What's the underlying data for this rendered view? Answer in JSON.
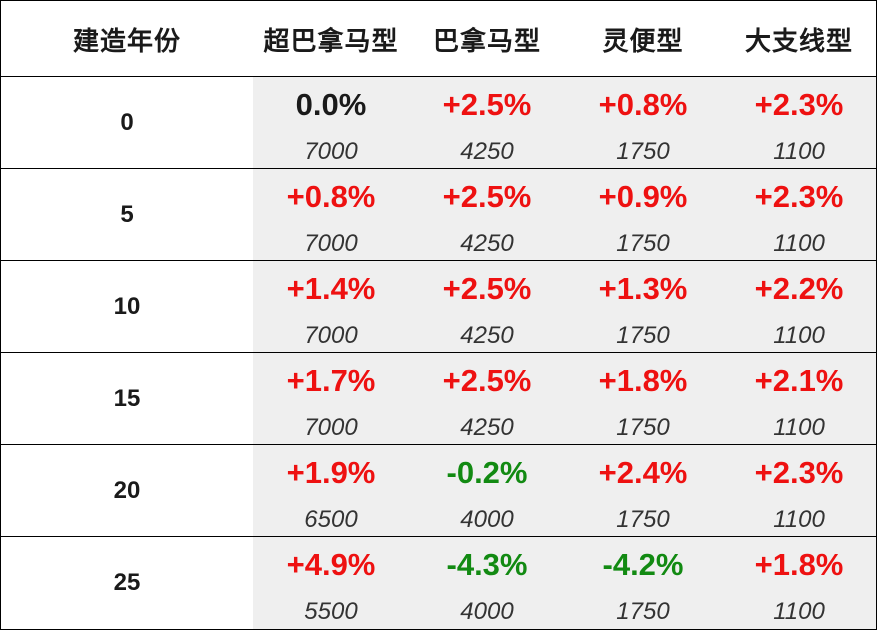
{
  "chart_data": {
    "type": "table",
    "columns": [
      "建造年份",
      "超巴拿马型",
      "巴拿马型",
      "灵便型",
      "大支线型"
    ],
    "rows": [
      {
        "year": "0",
        "cells": [
          {
            "pct": "0.0%",
            "sign": "zero",
            "value": "7000"
          },
          {
            "pct": "+2.5%",
            "sign": "pos",
            "value": "4250"
          },
          {
            "pct": "+0.8%",
            "sign": "pos",
            "value": "1750"
          },
          {
            "pct": "+2.3%",
            "sign": "pos",
            "value": "1100"
          }
        ]
      },
      {
        "year": "5",
        "cells": [
          {
            "pct": "+0.8%",
            "sign": "pos",
            "value": "7000"
          },
          {
            "pct": "+2.5%",
            "sign": "pos",
            "value": "4250"
          },
          {
            "pct": "+0.9%",
            "sign": "pos",
            "value": "1750"
          },
          {
            "pct": "+2.3%",
            "sign": "pos",
            "value": "1100"
          }
        ]
      },
      {
        "year": "10",
        "cells": [
          {
            "pct": "+1.4%",
            "sign": "pos",
            "value": "7000"
          },
          {
            "pct": "+2.5%",
            "sign": "pos",
            "value": "4250"
          },
          {
            "pct": "+1.3%",
            "sign": "pos",
            "value": "1750"
          },
          {
            "pct": "+2.2%",
            "sign": "pos",
            "value": "1100"
          }
        ]
      },
      {
        "year": "15",
        "cells": [
          {
            "pct": "+1.7%",
            "sign": "pos",
            "value": "7000"
          },
          {
            "pct": "+2.5%",
            "sign": "pos",
            "value": "4250"
          },
          {
            "pct": "+1.8%",
            "sign": "pos",
            "value": "1750"
          },
          {
            "pct": "+2.1%",
            "sign": "pos",
            "value": "1100"
          }
        ]
      },
      {
        "year": "20",
        "cells": [
          {
            "pct": "+1.9%",
            "sign": "pos",
            "value": "6500"
          },
          {
            "pct": "-0.2%",
            "sign": "neg",
            "value": "4000"
          },
          {
            "pct": "+2.4%",
            "sign": "pos",
            "value": "1750"
          },
          {
            "pct": "+2.3%",
            "sign": "pos",
            "value": "1100"
          }
        ]
      },
      {
        "year": "25",
        "cells": [
          {
            "pct": "+4.9%",
            "sign": "pos",
            "value": "5500"
          },
          {
            "pct": "-4.3%",
            "sign": "neg",
            "value": "4000"
          },
          {
            "pct": "-4.2%",
            "sign": "neg",
            "value": "1750"
          },
          {
            "pct": "+1.8%",
            "sign": "pos",
            "value": "1100"
          }
        ]
      }
    ]
  },
  "colors": {
    "positive": "#ee1111",
    "negative": "#128a12",
    "neutral": "#1a1a1a",
    "cell_background": "#efefef"
  }
}
